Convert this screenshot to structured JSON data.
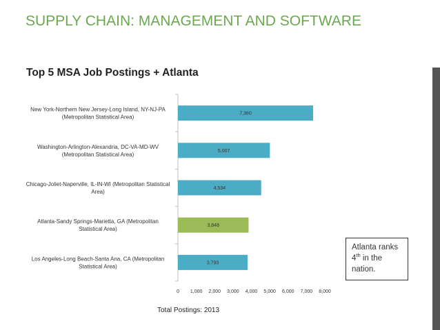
{
  "slide": {
    "title": "SUPPLY CHAIN: MANAGEMENT AND SOFTWARE"
  },
  "callout": {
    "line1": "Atlanta ranks",
    "line2_prefix": "4",
    "line2_sup": "th",
    "line2_suffix": " in the",
    "line3": "nation."
  },
  "colors": {
    "title": "#6aa84f",
    "bar_default": "#4bacc6",
    "bar_highlight": "#9bbb59",
    "side_bar": "#555555"
  },
  "chart_data": {
    "type": "bar",
    "orientation": "horizontal",
    "title": "Top 5 MSA Job Postings + Atlanta",
    "xlabel": "Total Postings: 2013",
    "ylabel": "",
    "xlim": [
      0,
      8000
    ],
    "xticks": [
      "0",
      "1,000",
      "2,000",
      "3,000",
      "4,000",
      "5,000",
      "6,000",
      "7,000",
      "8,000"
    ],
    "grid": false,
    "categories": [
      [
        "New York-Northern New Jersey-Long Island, NY-NJ-PA",
        "(Metropolitan Statistical Area)"
      ],
      [
        "Washington-Arlington-Alexandria, DC-VA-MD-WV",
        "(Metropolitan Statistical Area)"
      ],
      [
        "Chicago-Joliet-Naperville, IL-IN-WI (Metropolitan Statistical",
        "Area)"
      ],
      [
        "Atlanta-Sandy Springs-Marietta, GA (Metropolitan",
        "Statistical Area)"
      ],
      [
        "Los Angeles-Long Beach-Santa Ana, CA (Metropolitan",
        "Statistical Area)"
      ]
    ],
    "values": [
      7360,
      5007,
      4534,
      3848,
      3793
    ],
    "value_labels": [
      "7,360",
      "5,007",
      "4,534",
      "3,848",
      "3,793"
    ],
    "highlight_index": 3
  }
}
